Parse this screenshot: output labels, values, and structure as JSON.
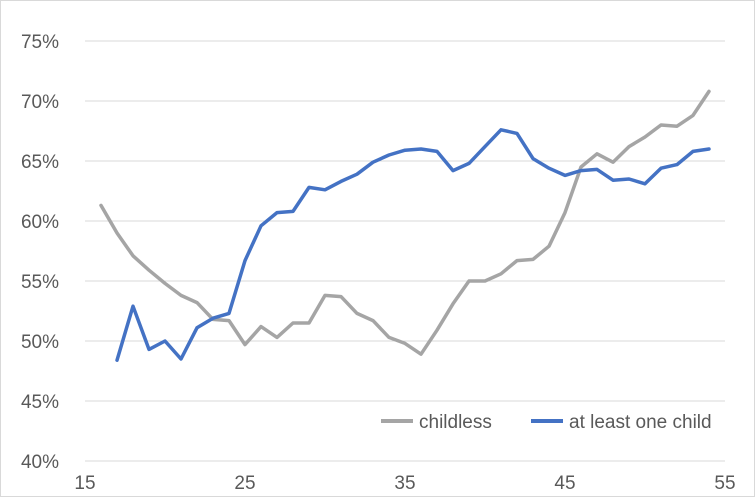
{
  "chart_data": {
    "type": "line",
    "title": "",
    "xlabel": "",
    "ylabel": "",
    "xlim": [
      15,
      55
    ],
    "ylim": [
      0.4,
      0.75
    ],
    "grid": true,
    "legend_position": "bottom-right inside plot",
    "x_ticks": [
      15,
      25,
      35,
      45,
      55
    ],
    "x_tick_labels": [
      "15",
      "25",
      "35",
      "45",
      "55"
    ],
    "y_ticks": [
      0.4,
      0.45,
      0.5,
      0.55,
      0.6,
      0.65,
      0.7,
      0.75
    ],
    "y_tick_labels": [
      "40%",
      "45%",
      "50%",
      "55%",
      "60%",
      "65%",
      "70%",
      "75%"
    ],
    "series": [
      {
        "name": "childless",
        "color": "#a5a5a5",
        "x": [
          16,
          17,
          18,
          19,
          20,
          21,
          22,
          23,
          24,
          25,
          26,
          27,
          28,
          29,
          30,
          31,
          32,
          33,
          34,
          35,
          36,
          37,
          38,
          39,
          40,
          41,
          42,
          43,
          44,
          45,
          46,
          47,
          48,
          49,
          50,
          51,
          52,
          53,
          54
        ],
        "values": [
          0.613,
          0.59,
          0.571,
          0.559,
          0.548,
          0.538,
          0.532,
          0.518,
          0.517,
          0.497,
          0.512,
          0.503,
          0.515,
          0.515,
          0.538,
          0.537,
          0.523,
          0.517,
          0.503,
          0.498,
          0.489,
          0.509,
          0.531,
          0.55,
          0.55,
          0.556,
          0.567,
          0.568,
          0.579,
          0.607,
          0.645,
          0.656,
          0.649,
          0.662,
          0.67,
          0.68,
          0.679,
          0.688,
          0.708
        ]
      },
      {
        "name": "at least one child",
        "color": "#4472c4",
        "x": [
          17,
          18,
          19,
          20,
          21,
          22,
          23,
          24,
          25,
          26,
          27,
          28,
          29,
          30,
          31,
          32,
          33,
          34,
          35,
          36,
          37,
          38,
          39,
          40,
          41,
          42,
          43,
          44,
          45,
          46,
          47,
          48,
          49,
          50,
          51,
          52,
          53,
          54
        ],
        "values": [
          0.484,
          0.529,
          0.493,
          0.5,
          0.485,
          0.511,
          0.519,
          0.523,
          0.567,
          0.596,
          0.607,
          0.608,
          0.628,
          0.626,
          0.633,
          0.639,
          0.649,
          0.655,
          0.659,
          0.66,
          0.658,
          0.642,
          0.648,
          0.662,
          0.676,
          0.673,
          0.652,
          0.644,
          0.638,
          0.642,
          0.643,
          0.634,
          0.635,
          0.631,
          0.644,
          0.647,
          0.658,
          0.66
        ]
      }
    ]
  }
}
